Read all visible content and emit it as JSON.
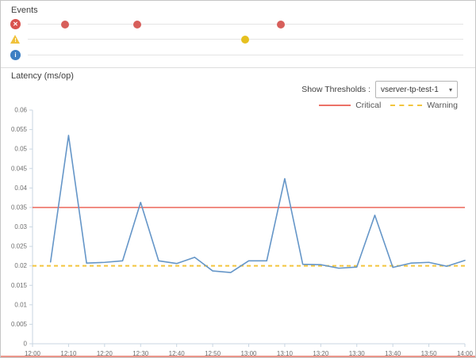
{
  "events_panel": {
    "title": "Events",
    "rows": [
      {
        "id": "error",
        "icon": "error-circle-icon",
        "glyph": "✕",
        "icon_color": "#d9534f",
        "dot_color": "#d75f5b",
        "dots": [
          "12:09",
          "12:29",
          "13:09"
        ]
      },
      {
        "id": "warning",
        "icon": "warning-triangle-icon",
        "glyph": "!",
        "icon_color": "#f0c13a",
        "dot_color": "#e6c01f",
        "dots": [
          "12:59"
        ]
      },
      {
        "id": "info",
        "icon": "info-circle-icon",
        "glyph": "i",
        "icon_color": "#3d7fc3",
        "dot_color": "#3d7fc3",
        "dots": []
      }
    ]
  },
  "latency_panel": {
    "title": "Latency (ms/op)",
    "show_thresholds_label": "Show Thresholds :",
    "threshold_selected": "vserver-tp-test-1",
    "select_caret": "▾",
    "legend": [
      {
        "label": "Critical",
        "color": "#ec7166",
        "style": "solid"
      },
      {
        "label": "Warning",
        "color": "#f2c53e",
        "style": "dashed"
      }
    ]
  },
  "chart_data": {
    "type": "line",
    "title": "Latency (ms/op)",
    "xlabel": "",
    "ylabel": "ms/op",
    "grid": false,
    "legend_position": "top-right",
    "x_range": [
      "12:00",
      "14:00"
    ],
    "xticks": [
      "12:00",
      "12:10",
      "12:20",
      "12:30",
      "12:40",
      "12:50",
      "13:00",
      "13:10",
      "13:20",
      "13:30",
      "13:40",
      "13:50",
      "14:00"
    ],
    "ylim": [
      0,
      0.06
    ],
    "ytick_step": 0.005,
    "x": [
      "12:05",
      "12:10",
      "12:15",
      "12:20",
      "12:25",
      "12:30",
      "12:35",
      "12:40",
      "12:45",
      "12:50",
      "12:55",
      "13:00",
      "13:05",
      "13:10",
      "13:15",
      "13:20",
      "13:25",
      "13:30",
      "13:35",
      "13:40",
      "13:45",
      "13:50",
      "13:55",
      "14:00"
    ],
    "series": [
      {
        "name": "Latency",
        "color": "#6596c8",
        "values": [
          0.021,
          0.0535,
          0.0207,
          0.0209,
          0.0213,
          0.0363,
          0.0213,
          0.0206,
          0.0222,
          0.0187,
          0.0183,
          0.0213,
          0.0213,
          0.0424,
          0.0204,
          0.0203,
          0.0194,
          0.0197,
          0.033,
          0.0196,
          0.0207,
          0.0209,
          0.0199,
          0.0214
        ]
      }
    ],
    "thresholds": [
      {
        "name": "Critical",
        "value": 0.035,
        "color": "#ee7267",
        "style": "solid"
      },
      {
        "name": "Warning",
        "value": 0.02,
        "color": "#f3c53c",
        "style": "dashed"
      }
    ]
  }
}
